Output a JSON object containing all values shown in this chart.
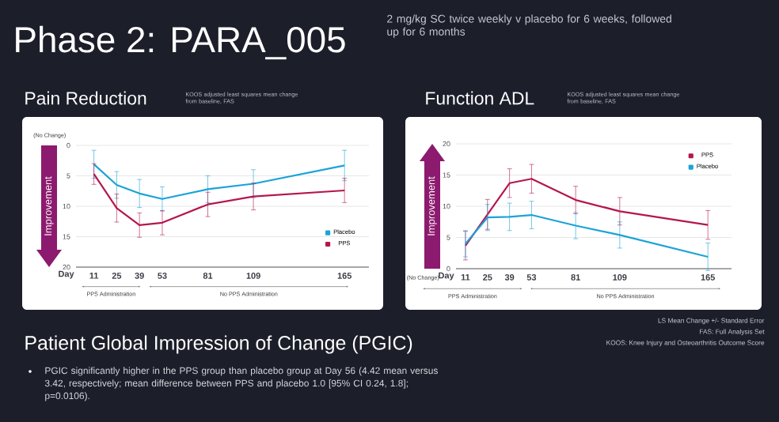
{
  "chart_data": [
    {
      "type": "other",
      "title": "Phase 2: PARA_005",
      "subtitle": "2 mg/kg SC twice weekly v placebo for 6 weeks, followed up for 6 months"
    },
    {
      "type": "line",
      "title": "Pain Reduction",
      "subtitle": "KOOS adjusted least squares mean change from baseline, FAS",
      "xlabel": "Day",
      "ylabel": "Improvement",
      "annotations": [
        "(No Change)",
        "PPS Administration",
        "No PPS Administration"
      ],
      "x": [
        11,
        25,
        39,
        53,
        81,
        109,
        165
      ],
      "xlim": [
        0,
        180
      ],
      "xticks": [
        11,
        25,
        39,
        53,
        81,
        109,
        165
      ],
      "ylim": [
        20,
        0
      ],
      "yticks": [
        0,
        5,
        10,
        15,
        20
      ],
      "grid": "y",
      "legend": "bottom right",
      "series": [
        {
          "name": "Placebo",
          "color": "#1ba3d8",
          "values": [
            3.1,
            6.5,
            7.9,
            8.8,
            7.2,
            6.3,
            3.3
          ],
          "errors": [
            2.3,
            2.2,
            2.3,
            2.0,
            2.2,
            2.3,
            2.5
          ]
        },
        {
          "name": "PPS",
          "color": "#b5164f",
          "values": [
            4.7,
            10.3,
            13.1,
            12.7,
            9.7,
            8.4,
            7.4
          ],
          "errors": [
            1.7,
            2.3,
            2.0,
            2.0,
            2.0,
            2.2,
            2.0
          ]
        }
      ]
    },
    {
      "type": "line",
      "title": "Function ADL",
      "subtitle": "KOOS adjusted least squares mean change from baseline, FAS",
      "xlabel": "Day",
      "ylabel": "Improvement",
      "annotations": [
        "(No Change)",
        "PPS Administration",
        "No PPS Administration"
      ],
      "x": [
        11,
        25,
        39,
        53,
        81,
        109,
        165
      ],
      "xlim": [
        5,
        180
      ],
      "xticks": [
        11,
        25,
        39,
        53,
        81,
        109,
        165
      ],
      "ylim": [
        0,
        20
      ],
      "yticks": [
        0,
        5,
        10,
        15,
        20
      ],
      "grid": "y",
      "legend": "top right",
      "series": [
        {
          "name": "PPS",
          "color": "#b5164f",
          "values": [
            3.7,
            8.7,
            13.7,
            14.4,
            11.0,
            9.2,
            7.0
          ],
          "errors": [
            2.3,
            2.4,
            2.3,
            2.3,
            2.2,
            2.2,
            2.3
          ]
        },
        {
          "name": "Placebo",
          "color": "#1ba3d8",
          "values": [
            4.0,
            8.2,
            8.3,
            8.6,
            6.9,
            5.4,
            1.9
          ],
          "errors": [
            2.1,
            2.1,
            2.2,
            2.2,
            2.1,
            2.1,
            2.2
          ]
        }
      ]
    },
    {
      "type": "other",
      "title": "Patient Global Impression of Change (PGIC)",
      "annotations": [
        "PGIC significantly higher in the PPS group than placebo group at Day 56 (4.42 mean versus 3.42, respectively; mean difference between PPS and placebo 1.0 [95% CI 0.24, 1.8]; p=0.0106).",
        "LS Mean Change +/- Standard Error",
        "FAS: Full Analysis Set",
        "KOOS: Knee Injury and Osteoarthritis Outcome Score"
      ]
    }
  ]
}
